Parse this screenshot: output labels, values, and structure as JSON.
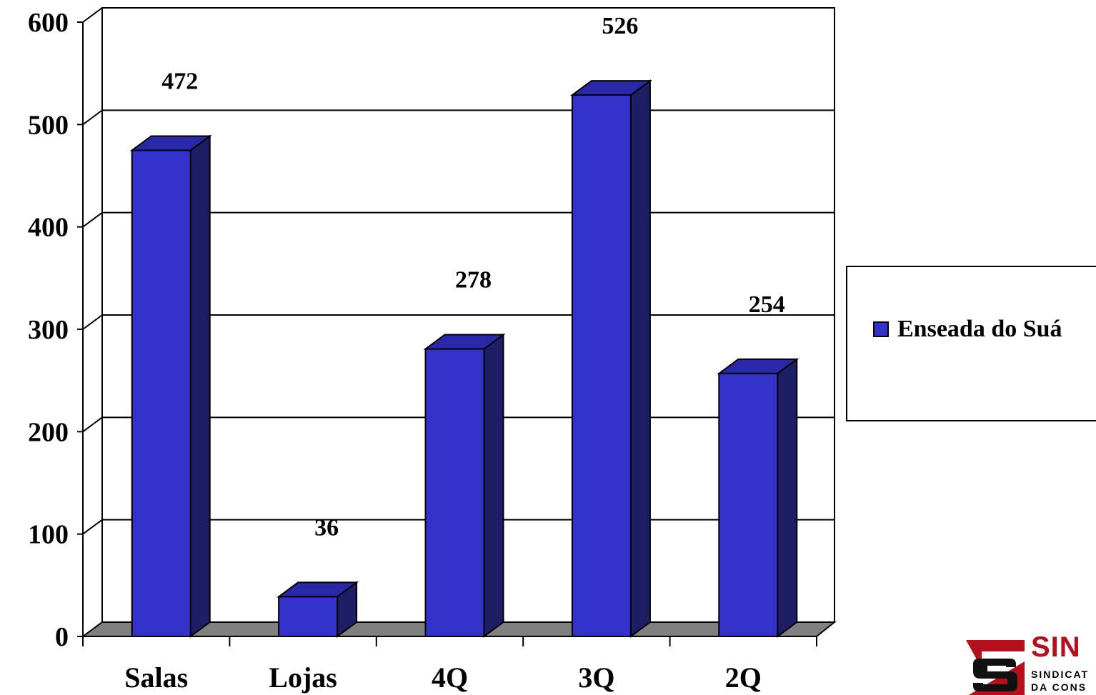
{
  "chart_data": {
    "type": "bar",
    "style": "3d-column",
    "categories": [
      "Salas",
      "Lojas",
      "4Q",
      "3Q",
      "2Q"
    ],
    "series": [
      {
        "name": "Enseada do Suá",
        "values": [
          472,
          36,
          278,
          526,
          254
        ]
      }
    ],
    "data_labels": [
      "472",
      "36",
      "278",
      "526",
      "254"
    ],
    "ylim": [
      0,
      600
    ],
    "yticks": [
      0,
      100,
      200,
      300,
      400,
      500,
      600
    ],
    "grid": true,
    "legend_position": "right",
    "colors": {
      "bar_front": "#3333cc",
      "bar_side": "#1e1e66",
      "bar_top": "#2828a8",
      "floor": "#808080"
    }
  },
  "legend": {
    "label": "Enseada do Suá"
  },
  "logo": {
    "word": "SIN",
    "line1": "SINDICAT",
    "line2": "DA CONS",
    "red": "#b5101b"
  }
}
